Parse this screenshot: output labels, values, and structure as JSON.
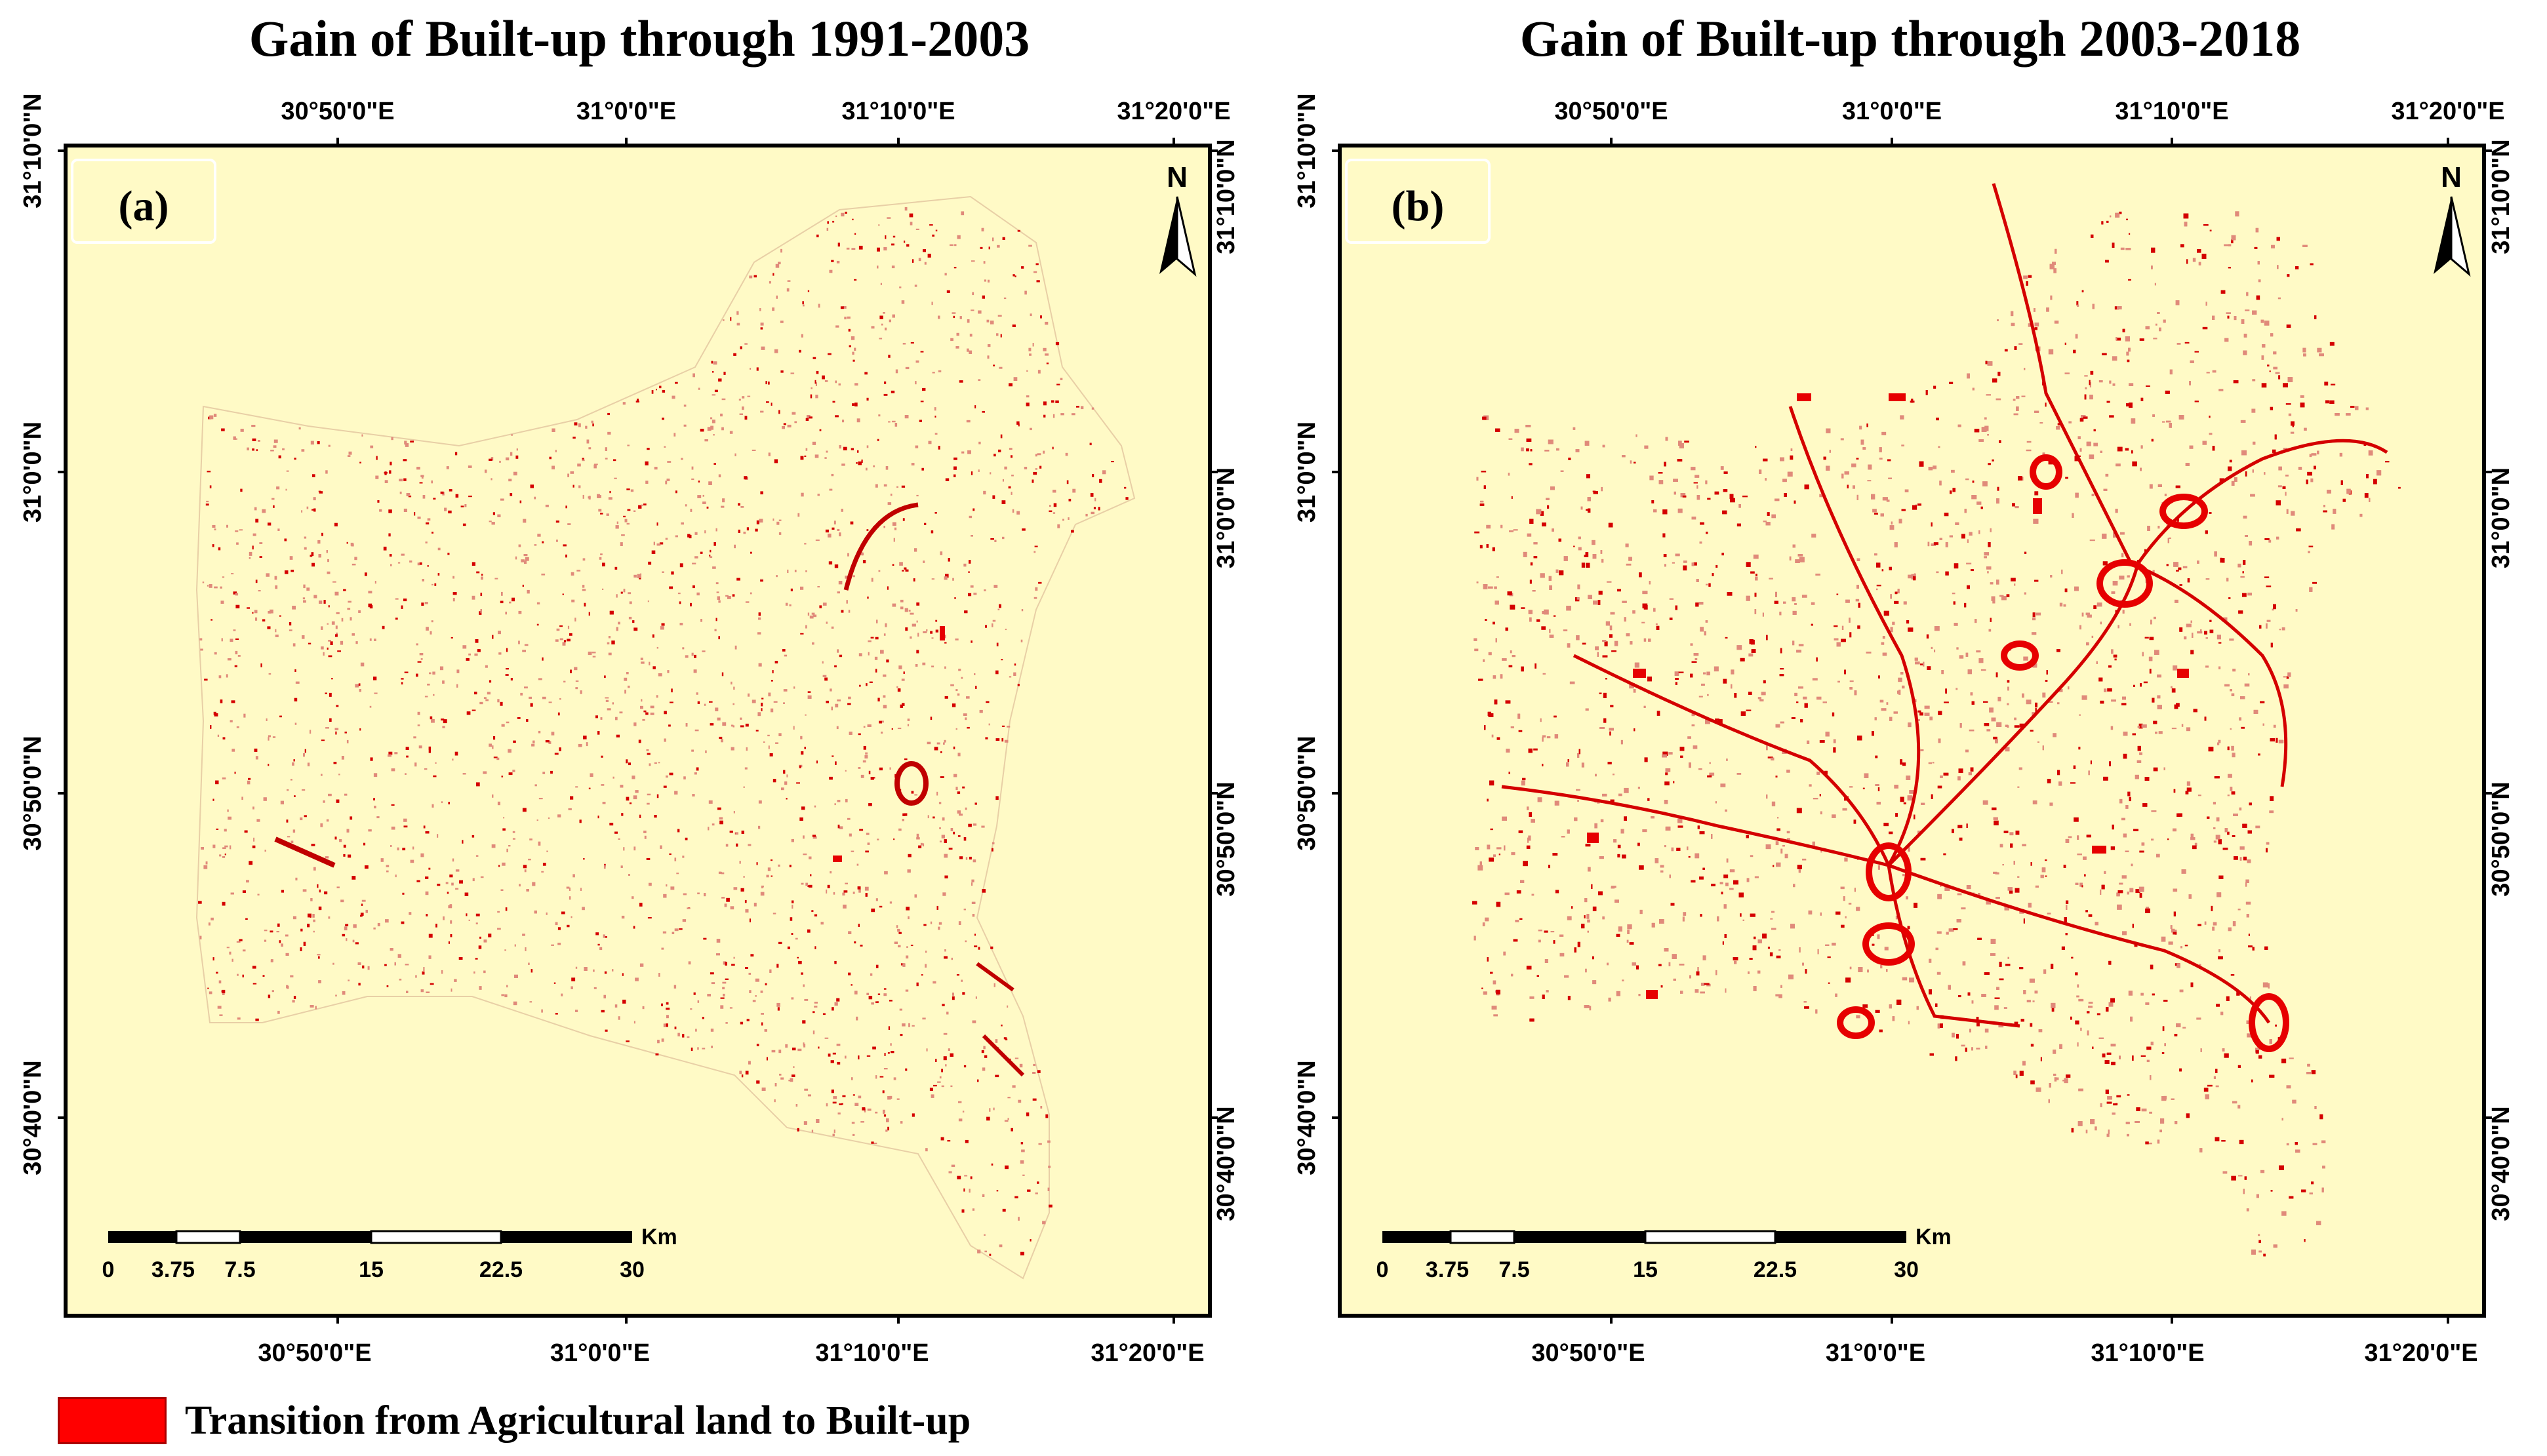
{
  "colors": {
    "background": "#fffac6",
    "built_up": "#e60000",
    "frame": "#000000"
  },
  "panels": [
    {
      "id": "a",
      "title": "Gain of Built-up through 1991-2003",
      "letter": "(a)",
      "top_ticks": [
        "30°50'0\"E",
        "31°0'0\"E",
        "31°10'0\"E",
        "31°20'0\"E"
      ],
      "bottom_ticks": [
        "30°50'0\"E",
        "31°0'0\"E",
        "31°10'0\"E",
        "31°20'0\"E"
      ],
      "left_ticks": [
        "31°10'0\"N",
        "31°0'0\"N",
        "30°50'0\"N",
        "30°40'0\"N"
      ],
      "right_ticks": [
        "31°10'0\"N",
        "31°0'0\"N",
        "30°50'0\"N",
        "30°40'0\"N"
      ],
      "north_label": "N",
      "scale_unit": "Km",
      "scale_labels": [
        "0",
        "3.75",
        "7.5",
        "15",
        "22.5",
        "30"
      ]
    },
    {
      "id": "b",
      "title": "Gain of Built-up through 2003-2018",
      "letter": "(b)",
      "top_ticks": [
        "30°50'0\"E",
        "31°0'0\"E",
        "31°10'0\"E",
        "31°20'0\"E"
      ],
      "bottom_ticks": [
        "30°50'0\"E",
        "31°0'0\"E",
        "31°10'0\"E",
        "31°20'0\"E"
      ],
      "left_ticks": [
        "31°10'0\"N",
        "31°0'0\"N",
        "30°50'0\"N",
        "30°40'0\"N"
      ],
      "right_ticks": [
        "31°10'0\"N",
        "31°0'0\"N",
        "30°50'0\"N",
        "30°40'0\"N"
      ],
      "north_label": "N",
      "scale_unit": "Km",
      "scale_labels": [
        "0",
        "3.75",
        "7.5",
        "15",
        "22.5",
        "30"
      ]
    }
  ],
  "legend": {
    "label": "Transition from Agricultural land to Built-up"
  }
}
